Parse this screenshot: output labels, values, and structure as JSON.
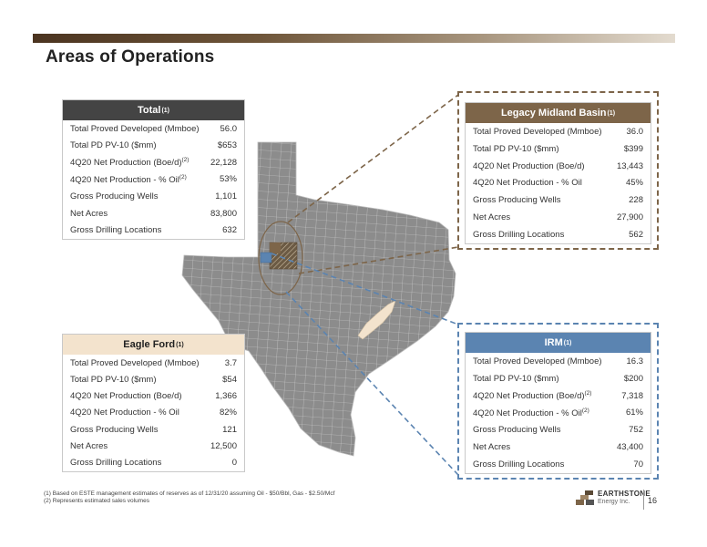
{
  "title": "Areas of Operations",
  "total": {
    "header": "Total",
    "header_note": "(1)",
    "rows": [
      {
        "label": "Total Proved Developed (Mmboe)",
        "note": "",
        "value": "56.0"
      },
      {
        "label": "Total PD PV-10 ($mm)",
        "note": "",
        "value": "$653"
      },
      {
        "label": "4Q20 Net Production (Boe/d)",
        "note": "(2)",
        "value": "22,128"
      },
      {
        "label": "4Q20 Net Production - % Oil",
        "note": "(2)",
        "value": "53%"
      },
      {
        "label": "Gross Producing Wells",
        "note": "",
        "value": "1,101"
      },
      {
        "label": "Net Acres",
        "note": "",
        "value": "83,800"
      },
      {
        "label": "Gross Drilling Locations",
        "note": "",
        "value": "632"
      }
    ]
  },
  "legacy_midland": {
    "header": "Legacy Midland Basin",
    "header_note": "(1)",
    "rows": [
      {
        "label": "Total Proved Developed (Mmboe)",
        "note": "",
        "value": "36.0"
      },
      {
        "label": "Total PD PV-10 ($mm)",
        "note": "",
        "value": "$399"
      },
      {
        "label": "4Q20 Net Production (Boe/d)",
        "note": "",
        "value": "13,443"
      },
      {
        "label": "4Q20 Net Production - % Oil",
        "note": "",
        "value": "45%"
      },
      {
        "label": "Gross Producing Wells",
        "note": "",
        "value": "228"
      },
      {
        "label": "Net Acres",
        "note": "",
        "value": "27,900"
      },
      {
        "label": "Gross Drilling Locations",
        "note": "",
        "value": "562"
      }
    ]
  },
  "eagle_ford": {
    "header": "Eagle Ford",
    "header_note": "(1)",
    "rows": [
      {
        "label": "Total Proved Developed (Mmboe)",
        "note": "",
        "value": "3.7"
      },
      {
        "label": "Total PD PV-10 ($mm)",
        "note": "",
        "value": "$54"
      },
      {
        "label": "4Q20 Net Production (Boe/d)",
        "note": "",
        "value": "1,366"
      },
      {
        "label": "4Q20 Net Production - % Oil",
        "note": "",
        "value": "82%"
      },
      {
        "label": "Gross Producing Wells",
        "note": "",
        "value": "121"
      },
      {
        "label": "Net Acres",
        "note": "",
        "value": "12,500"
      },
      {
        "label": "Gross Drilling Locations",
        "note": "",
        "value": "0"
      }
    ]
  },
  "irm": {
    "header": "IRM",
    "header_note": "(1)",
    "rows": [
      {
        "label": "Total Proved Developed (Mmboe)",
        "note": "",
        "value": "16.3"
      },
      {
        "label": "Total PD PV-10 ($mm)",
        "note": "",
        "value": "$200"
      },
      {
        "label": "4Q20 Net Production (Boe/d)",
        "note": "(2)",
        "value": "7,318"
      },
      {
        "label": "4Q20 Net Production - % Oil",
        "note": "(2)",
        "value": "61%"
      },
      {
        "label": "Gross Producing Wells",
        "note": "",
        "value": "752"
      },
      {
        "label": "Net Acres",
        "note": "",
        "value": "43,400"
      },
      {
        "label": "Gross Drilling Locations",
        "note": "",
        "value": "70"
      }
    ]
  },
  "footnotes": [
    "(1)  Based on ESTE management estimates of reserves as of 12/31/20 assuming Oil - $50/Bbl, Gas - $2.50/Mcf",
    "(2)  Represents estimated sales volumes"
  ],
  "logo": {
    "name": "EARTHSTONE",
    "sub": "Energy Inc."
  },
  "page_number": "16",
  "colors": {
    "header_dark": "#444444",
    "legacy_brown": "#7d6549",
    "eagle_beige": "#f3e3cd",
    "irm_blue": "#5b84b1",
    "map_gray": "#8a8a8a"
  }
}
